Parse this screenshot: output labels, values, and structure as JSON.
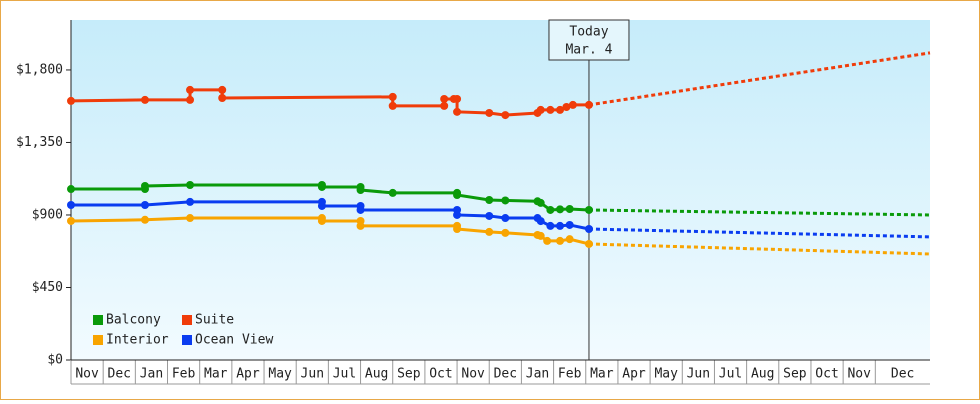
{
  "chart_data": {
    "type": "line",
    "annotation": {
      "lines": [
        "Today",
        "Mar. 4"
      ],
      "x": 16.1
    },
    "xlim": [
      0,
      26.7
    ],
    "xticks": [
      {
        "value": 0,
        "label": "Nov"
      },
      {
        "value": 1,
        "label": "Dec"
      },
      {
        "value": 2,
        "label": "Jan"
      },
      {
        "value": 3,
        "label": "Feb"
      },
      {
        "value": 4,
        "label": "Mar"
      },
      {
        "value": 5,
        "label": "Apr"
      },
      {
        "value": 6,
        "label": "May"
      },
      {
        "value": 7,
        "label": "Jun"
      },
      {
        "value": 8,
        "label": "Jul"
      },
      {
        "value": 9,
        "label": "Aug"
      },
      {
        "value": 10,
        "label": "Sep"
      },
      {
        "value": 11,
        "label": "Oct"
      },
      {
        "value": 12,
        "label": "Nov"
      },
      {
        "value": 13,
        "label": "Dec"
      },
      {
        "value": 14,
        "label": "Jan"
      },
      {
        "value": 15,
        "label": "Feb"
      },
      {
        "value": 16,
        "label": "Mar"
      },
      {
        "value": 17,
        "label": "Apr"
      },
      {
        "value": 18,
        "label": "May"
      },
      {
        "value": 19,
        "label": "Jun"
      },
      {
        "value": 20,
        "label": "Jul"
      },
      {
        "value": 21,
        "label": "Aug"
      },
      {
        "value": 22,
        "label": "Sep"
      },
      {
        "value": 23,
        "label": "Oct"
      },
      {
        "value": 24,
        "label": "Nov"
      },
      {
        "value": 25,
        "label": "Dec"
      }
    ],
    "ylim": [
      0,
      2110
    ],
    "yticks": [
      {
        "value": 0,
        "label": "$0"
      },
      {
        "value": 450,
        "label": "$450"
      },
      {
        "value": 900,
        "label": "$900"
      },
      {
        "value": 1350,
        "label": "$1,350"
      },
      {
        "value": 1800,
        "label": "$1,800"
      }
    ],
    "legend": "lower left",
    "series": [
      {
        "name": "Balcony",
        "color": "#0a9a0a",
        "x": [
          0,
          2.3,
          2.3,
          3.7,
          7.8,
          7.8,
          9.0,
          9.0,
          10.0,
          12.0,
          12.0,
          13.0,
          13.5,
          14.5,
          14.6,
          14.9,
          15.2,
          15.5,
          16.1
        ],
        "values": [
          1061,
          1061,
          1080,
          1086,
          1086,
          1074,
          1074,
          1055,
          1037,
          1037,
          1024,
          993,
          990,
          985,
          975,
          931,
          935,
          937,
          931
        ],
        "forecast_x": [
          16.1,
          26.7
        ],
        "forecast": [
          931,
          900
        ]
      },
      {
        "name": "Suite",
        "color": "#f03c0a",
        "x": [
          0,
          2.3,
          3.7,
          3.7,
          4.7,
          4.7,
          10.0,
          10.0,
          11.6,
          11.6,
          11.9,
          12.0,
          12.0,
          13.0,
          13.5,
          14.5,
          14.6,
          14.9,
          15.2,
          15.4,
          15.6,
          16.1
        ],
        "values": [
          1608,
          1614,
          1614,
          1676,
          1676,
          1626,
          1633,
          1577,
          1577,
          1620,
          1620,
          1620,
          1540,
          1533,
          1520,
          1533,
          1552,
          1552,
          1552,
          1570,
          1583,
          1583
        ],
        "forecast_x": [
          16.1,
          26.7
        ],
        "forecast": [
          1583,
          1906
        ]
      },
      {
        "name": "Interior",
        "color": "#f8a400",
        "x": [
          0,
          2.3,
          3.7,
          7.8,
          7.8,
          9.0,
          9.0,
          12.0,
          12.0,
          13.0,
          13.5,
          14.5,
          14.6,
          14.8,
          15.2,
          15.5,
          16.1
        ],
        "values": [
          863,
          870,
          881,
          881,
          863,
          863,
          832,
          832,
          813,
          795,
          789,
          776,
          770,
          739,
          739,
          750,
          720
        ],
        "forecast_x": [
          16.1,
          26.7
        ],
        "forecast": [
          720,
          658
        ]
      },
      {
        "name": "Ocean View",
        "color": "#0a3cf0",
        "x": [
          0,
          2.3,
          3.7,
          7.8,
          7.8,
          9.0,
          9.0,
          12.0,
          12.0,
          13.0,
          13.5,
          14.5,
          14.6,
          14.9,
          15.2,
          15.5,
          16.1
        ],
        "values": [
          962,
          962,
          981,
          981,
          956,
          956,
          931,
          931,
          900,
          894,
          881,
          881,
          862,
          832,
          832,
          838,
          813
        ],
        "forecast_x": [
          16.1,
          26.7
        ],
        "forecast": [
          813,
          764
        ]
      }
    ]
  }
}
